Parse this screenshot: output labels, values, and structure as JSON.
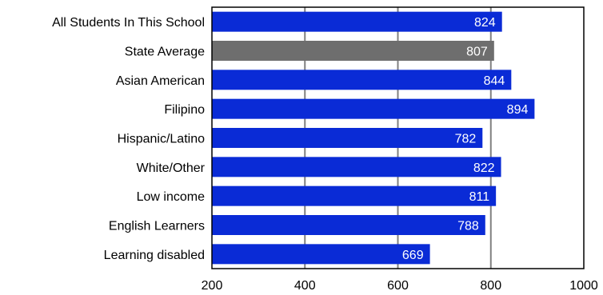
{
  "chart_data": {
    "type": "bar",
    "orientation": "horizontal",
    "categories": [
      "All Students In This School",
      "State Average",
      "Asian American",
      "Filipino",
      "Hispanic/Latino",
      "White/Other",
      "Low income",
      "English Learners",
      "Learning disabled"
    ],
    "values": [
      824,
      807,
      844,
      894,
      782,
      822,
      811,
      788,
      669
    ],
    "xlim": [
      200,
      1000
    ],
    "xticks": [
      200,
      400,
      600,
      800,
      1000
    ],
    "grid": "vertical",
    "colors": {
      "bar": "#0a2bd6",
      "highlight_bar": "#6e6e6e",
      "gridline": "#808080",
      "frame": "#000000",
      "value_text": "#ffffff"
    },
    "highlight_category": "State Average"
  }
}
